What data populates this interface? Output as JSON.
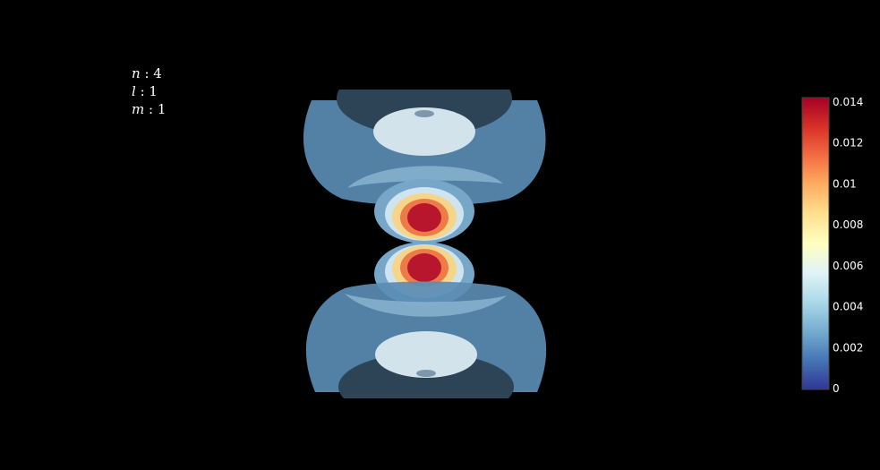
{
  "labels": [
    {
      "symbol": "n",
      "sep": " : ",
      "value": "4"
    },
    {
      "symbol": "l",
      "sep": " : ",
      "value": "1"
    },
    {
      "symbol": "m",
      "sep": " : ",
      "value": "1"
    }
  ],
  "chart_data": {
    "type": "volume-isosurface",
    "colorscale": "RdYlBu (reversed)",
    "colorbar": {
      "min": 0,
      "max": 0.014,
      "ticks": [
        "0",
        "0.002",
        "0.004",
        "0.006",
        "0.008",
        "0.01",
        "0.012",
        "0.014"
      ],
      "stops": [
        "#313695",
        "#4575b4",
        "#74add1",
        "#abd9e9",
        "#e0f3f8",
        "#ffffbf",
        "#fee090",
        "#fdae61",
        "#f46d43",
        "#d73027",
        "#a50026"
      ]
    },
    "quantum_numbers": {
      "n": 4,
      "l": 1,
      "m": 1
    }
  }
}
